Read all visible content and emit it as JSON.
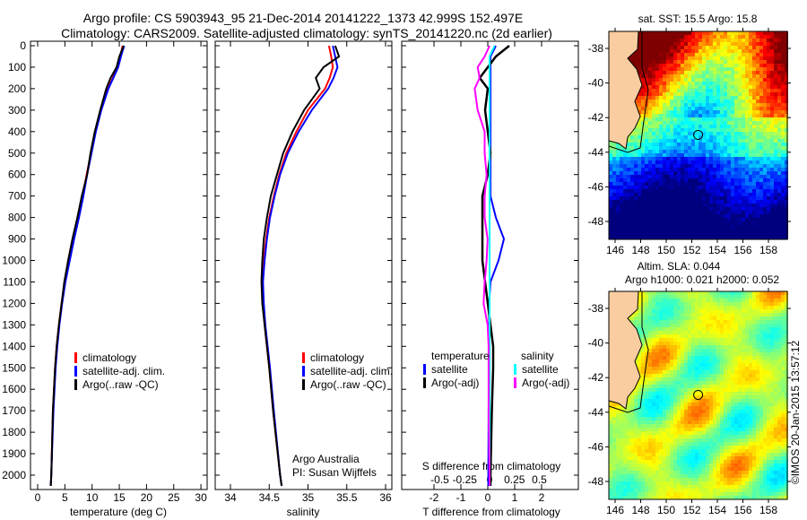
{
  "title": {
    "line1": "Argo profile: CS 5903943_95 21-Dec-2014 20141222_1373 42.999S 152.497E",
    "line2": "Climatology: CARS2009. Satellite-adjusted climatology: synTS_20141220.nc (2d earlier)"
  },
  "credit": "©IMOS 20-Jan-2015 13:57:12",
  "colors": {
    "climatology": "#ff0000",
    "satellite": "#0000ff",
    "argo": "#000000",
    "sal_satellite": "#00ffff",
    "sal_argo": "#ff00ff",
    "land": "#f9cda0"
  },
  "chart_data": [
    {
      "type": "line",
      "name": "temperature",
      "xlabel": "temperature (deg C)",
      "xlim": [
        -1,
        31
      ],
      "ylim": [
        2050,
        0
      ],
      "xticks": [
        "0",
        "5",
        "10",
        "15",
        "20",
        "25",
        "30"
      ],
      "yticks": [
        "0",
        "100",
        "200",
        "300",
        "400",
        "500",
        "600",
        "700",
        "800",
        "900",
        "1000",
        "1100",
        "1200",
        "1300",
        "1400",
        "1500",
        "1600",
        "1700",
        "1800",
        "1900",
        "2000"
      ],
      "legend": [
        "climatology",
        "satellite-adj. clim.",
        "Argo(..raw -QC)"
      ],
      "depth": [
        0,
        50,
        100,
        150,
        200,
        300,
        400,
        500,
        600,
        700,
        800,
        900,
        1000,
        1100,
        1200,
        1300,
        1400,
        1500,
        1700,
        2000,
        2050
      ],
      "series": [
        {
          "name": "climatology",
          "values": [
            15.6,
            15.2,
            14.7,
            13.8,
            12.9,
            11.6,
            10.6,
            9.8,
            9.0,
            8.3,
            7.5,
            6.6,
            5.8,
            5.0,
            4.4,
            3.9,
            3.5,
            3.2,
            2.8,
            2.5,
            2.4
          ]
        },
        {
          "name": "satellite-adj. clim.",
          "values": [
            15.9,
            15.3,
            14.8,
            13.9,
            13.0,
            11.7,
            10.7,
            9.9,
            9.1,
            8.4,
            7.6,
            6.7,
            5.9,
            5.1,
            4.5,
            4.0,
            3.6,
            3.3,
            2.9,
            2.5,
            2.4
          ]
        },
        {
          "name": "Argo(..raw -QC)",
          "values": [
            15.8,
            15.0,
            14.5,
            13.4,
            12.6,
            11.5,
            10.5,
            9.7,
            9.1,
            8.1,
            7.3,
            6.4,
            5.6,
            4.9,
            4.4,
            3.9,
            3.5,
            3.2,
            2.8,
            2.5,
            2.4
          ]
        }
      ]
    },
    {
      "type": "line",
      "name": "salinity",
      "xlabel": "salinity",
      "xlim": [
        33.8,
        36.1
      ],
      "ylim": [
        2050,
        0
      ],
      "xticks": [
        "34",
        "34.5",
        "35",
        "35.5",
        "36"
      ],
      "legend": [
        "climatology",
        "satellite-adj. clim.",
        "Argo(..raw -QC)"
      ],
      "annotation": [
        "Argo Australia",
        "PI: Susan Wijffels"
      ],
      "depth": [
        0,
        50,
        100,
        150,
        200,
        300,
        400,
        500,
        600,
        700,
        800,
        900,
        1000,
        1100,
        1200,
        1300,
        1400,
        1500,
        1700,
        2000,
        2050
      ],
      "series": [
        {
          "name": "climatology",
          "values": [
            35.27,
            35.3,
            35.32,
            35.28,
            35.22,
            35.0,
            34.85,
            34.72,
            34.63,
            34.56,
            34.5,
            34.46,
            34.43,
            34.41,
            34.42,
            34.44,
            34.47,
            34.5,
            34.55,
            34.64,
            34.66
          ]
        },
        {
          "name": "satellite-adj. clim.",
          "values": [
            35.32,
            35.35,
            35.38,
            35.33,
            35.26,
            35.05,
            34.88,
            34.74,
            34.64,
            34.57,
            34.51,
            34.47,
            34.44,
            34.42,
            34.43,
            34.45,
            34.48,
            34.51,
            34.56,
            34.64,
            34.66
          ]
        },
        {
          "name": "Argo(..raw -QC)",
          "values": [
            35.35,
            35.4,
            35.2,
            35.1,
            35.15,
            34.95,
            34.8,
            34.68,
            34.6,
            34.52,
            34.47,
            34.43,
            34.41,
            34.4,
            34.41,
            34.44,
            34.47,
            34.5,
            34.55,
            34.64,
            34.66
          ]
        }
      ]
    },
    {
      "type": "line",
      "name": "difference",
      "xlabel": "T difference from climatology",
      "x2label": "S difference from climatology",
      "xlim": [
        -3,
        3.5
      ],
      "ylim": [
        2050,
        0
      ],
      "xticks": [
        "-2",
        "-1",
        "0",
        "1",
        "2"
      ],
      "x2ticks": [
        "-0.5",
        "-0.25",
        "0",
        "0.25",
        "0.5"
      ],
      "legend": {
        "temperature": "temperature",
        "salinity": "salinity",
        "t_sat": "satellite",
        "t_argo": "Argo(-adj)",
        "s_sat": "satellite",
        "s_argo": "Argo(-adj)"
      },
      "depth": [
        0,
        50,
        100,
        150,
        200,
        300,
        400,
        500,
        600,
        700,
        800,
        900,
        1000,
        1100,
        1200,
        1300,
        1400,
        1500,
        1700,
        2000,
        2050
      ],
      "series": [
        {
          "name": "T satellite",
          "units": "T",
          "values": [
            0.3,
            0.1,
            0.1,
            0.1,
            0.1,
            0.1,
            0.1,
            0.1,
            0.1,
            0.1,
            0.3,
            0.6,
            0.4,
            0.1,
            0.05,
            0.05,
            0.05,
            0.05,
            0.03,
            0.02,
            0.02
          ]
        },
        {
          "name": "T Argo(-adj)",
          "units": "T",
          "values": [
            0.8,
            0.3,
            0.0,
            -0.3,
            0.0,
            -0.1,
            0.0,
            0.1,
            0.0,
            -0.2,
            -0.2,
            -0.2,
            -0.2,
            -0.1,
            0.0,
            0.1,
            0.2,
            0.2,
            0.15,
            0.1,
            0.1
          ]
        },
        {
          "name": "S satellite",
          "units": "S",
          "values": [
            0.05,
            0.0,
            0.0,
            0.0,
            0.0,
            0.0,
            0.0,
            0.0,
            0.0,
            0.0,
            0.0,
            0.0,
            0.0,
            0.0,
            0.0,
            0.0,
            0.0,
            0.0,
            0.0,
            0.0,
            0.0
          ]
        },
        {
          "name": "S Argo(-adj)",
          "units": "S",
          "values": [
            0.0,
            -0.05,
            -0.12,
            -0.1,
            -0.15,
            -0.12,
            -0.05,
            -0.05,
            -0.03,
            -0.05,
            -0.05,
            -0.02,
            -0.03,
            -0.05,
            -0.06,
            -0.02,
            -0.01,
            -0.01,
            -0.01,
            0.0,
            0.0
          ]
        }
      ]
    },
    {
      "type": "heatmap",
      "name": "sst-map",
      "title": "sat. SST: 15.5 Argo: 15.8",
      "xticks": [
        "146",
        "148",
        "150",
        "152",
        "154",
        "156",
        "158"
      ],
      "yticks": [
        "-38",
        "-40",
        "-42",
        "-44",
        "-46",
        "-48"
      ],
      "xlim": [
        145.5,
        159.5
      ],
      "ylim": [
        -49,
        -37
      ],
      "argo_position": [
        152.497,
        -42.999
      ]
    },
    {
      "type": "heatmap",
      "name": "sla-map",
      "title": "Altim. SLA: 0.044",
      "subtitle": "Argo h1000: 0.021 h2000: 0.052",
      "xticks": [
        "146",
        "148",
        "150",
        "152",
        "154",
        "156",
        "158"
      ],
      "yticks": [
        "-38",
        "-40",
        "-42",
        "-44",
        "-46",
        "-48"
      ],
      "xlim": [
        145.5,
        159.5
      ],
      "ylim": [
        -49,
        -37
      ],
      "argo_position": [
        152.497,
        -42.999
      ]
    }
  ]
}
